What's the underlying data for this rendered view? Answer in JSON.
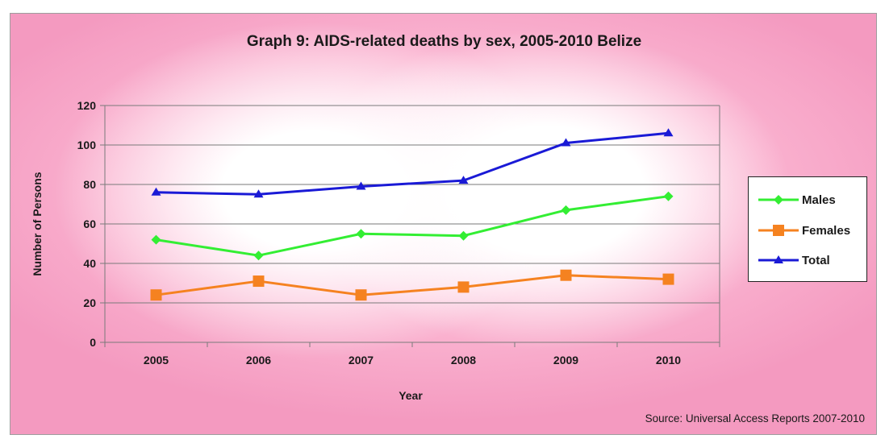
{
  "chart_data": {
    "type": "line",
    "title": "Graph 9: AIDS-related deaths by sex, 2005-2010 Belize",
    "xlabel": "Year",
    "ylabel": "Number of Persons",
    "categories": [
      "2005",
      "2006",
      "2007",
      "2008",
      "2009",
      "2010"
    ],
    "ylim": [
      0,
      120
    ],
    "yticks": [
      0,
      20,
      40,
      60,
      80,
      100,
      120
    ],
    "grid": true,
    "legend_position": "right",
    "series": [
      {
        "name": "Males",
        "values": [
          52,
          44,
          55,
          54,
          67,
          74
        ],
        "color": "#33ee33",
        "marker": "diamond"
      },
      {
        "name": "Females",
        "values": [
          24,
          31,
          24,
          28,
          34,
          32
        ],
        "color": "#f58220",
        "marker": "square"
      },
      {
        "name": "Total",
        "values": [
          76,
          75,
          79,
          82,
          101,
          106
        ],
        "color": "#1a1ad6",
        "marker": "triangle"
      }
    ],
    "source": "Source: Universal Access Reports 2007-2010"
  }
}
